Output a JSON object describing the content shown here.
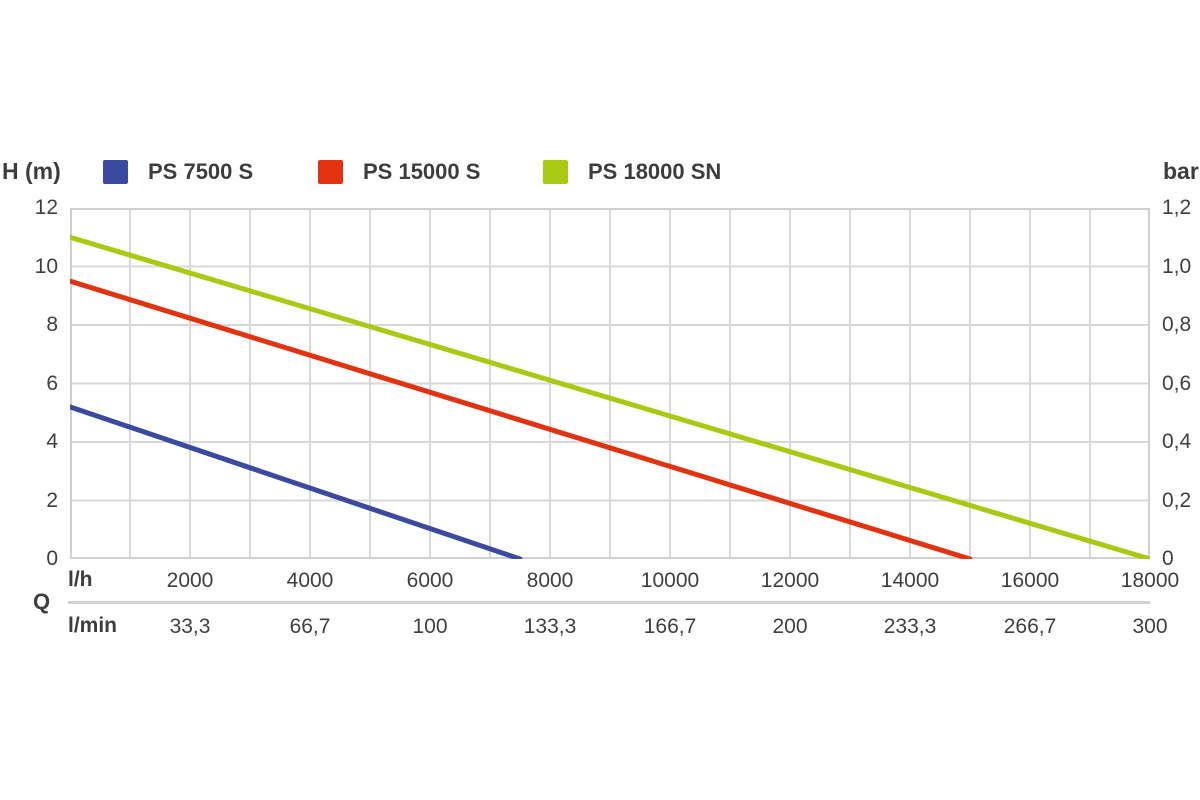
{
  "chart_data": {
    "type": "line",
    "legend_position": "top",
    "text_color": "#3d3d3d",
    "grid": {
      "color": "#d8d8d8",
      "border_color": "#d0d0d0"
    },
    "x_axis": {
      "label": "Q",
      "min": 0,
      "max": 18000,
      "minor_grid_step": 1000,
      "rows": [
        {
          "unit": "l/h",
          "ticks": [
            "2000",
            "4000",
            "6000",
            "8000",
            "10000",
            "12000",
            "14000",
            "16000",
            "18000"
          ],
          "values": [
            2000,
            4000,
            6000,
            8000,
            10000,
            12000,
            14000,
            16000,
            18000
          ]
        },
        {
          "unit": "l/min",
          "ticks": [
            "33,3",
            "66,7",
            "100",
            "133,3",
            "166,7",
            "200",
            "233,3",
            "266,7",
            "300"
          ],
          "values": [
            33.3,
            66.7,
            100,
            133.3,
            166.7,
            200,
            233.3,
            266.7,
            300
          ]
        }
      ]
    },
    "y_axis_left": {
      "label": "H (m)",
      "min": 0,
      "max": 12,
      "grid_step": 2,
      "ticks": [
        "12",
        "10",
        "8",
        "6",
        "4",
        "2",
        "0"
      ]
    },
    "y_axis_right": {
      "label": "bar",
      "min": 0,
      "max": 1.2,
      "grid_step": 0.2,
      "ticks": [
        "1,2",
        "1,0",
        "0,8",
        "0,6",
        "0,4",
        "0,2",
        "0"
      ]
    },
    "series": [
      {
        "name": "PS 7500 S",
        "color": "#3b4a9f",
        "points": [
          [
            0,
            5.2
          ],
          [
            7500,
            0
          ]
        ]
      },
      {
        "name": "PS 15000 S",
        "color": "#e23210",
        "points": [
          [
            0,
            9.5
          ],
          [
            15000,
            0
          ]
        ]
      },
      {
        "name": "PS 18000 SN",
        "color": "#a9c913",
        "points": [
          [
            0,
            11.0
          ],
          [
            18000,
            0
          ]
        ]
      }
    ]
  }
}
